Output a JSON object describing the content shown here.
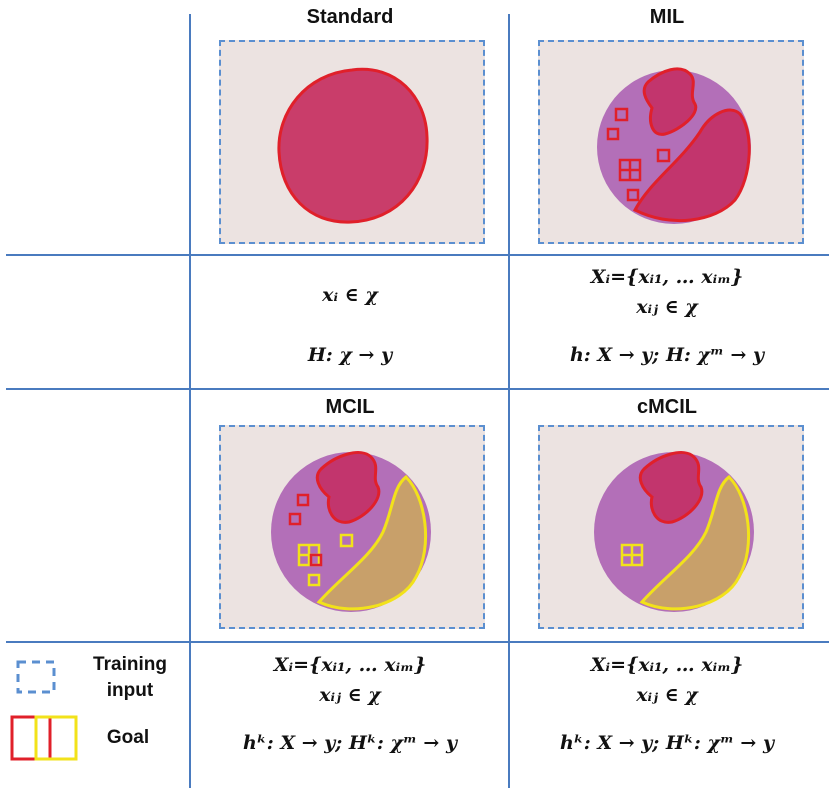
{
  "panels": {
    "standard": {
      "title": "Standard",
      "math": [
        "xᵢ ∈ χ",
        "H: χ → y"
      ]
    },
    "mil": {
      "title": "MIL",
      "math": [
        "Xᵢ={xᵢ₁, … xᵢₘ}",
        "xᵢⱼ ∈ χ",
        "h: X → y;  H: χᵐ → y"
      ]
    },
    "mcil": {
      "title": "MCIL",
      "math": [
        "Xᵢ={xᵢ₁, … xᵢₘ}",
        "xᵢⱼ ∈ χ",
        "hᵏ: X → y;  Hᵏ: χᵐ → y"
      ]
    },
    "cmcil": {
      "title": "cMCIL",
      "math": [
        "Xᵢ={xᵢ₁, … xᵢₘ}",
        "xᵢⱼ ∈ χ",
        "hᵏ: X → y;  Hᵏ: χᵐ → y"
      ]
    }
  },
  "legend": {
    "training_line1": "Training",
    "training_line2": "input",
    "goal": "Goal"
  },
  "colors": {
    "grid": "#4a7bbf",
    "dashed": "#5b8fd0",
    "cancer": "#e0202a",
    "yellow": "#f2e21a"
  }
}
